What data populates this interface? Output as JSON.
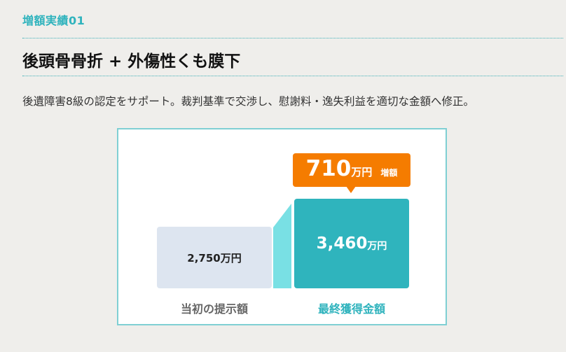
{
  "section_label": "増額実績01",
  "title": "後頭骨骨折 + 外傷性くも膜下",
  "description": "後遺障害8級の認定をサポート。裁判基準で交渉し、慰謝料・逸失利益を適切な金額へ修正。",
  "colors": {
    "accent": "#2fb3bd",
    "increase": "#f57c00",
    "initial_bar": "#dde5f0",
    "final_bar": "#2fb4bd"
  },
  "comparison": {
    "initial": {
      "value": "2,750万円",
      "caption": "当初の提示額"
    },
    "final": {
      "value": "3,460",
      "unit": "万円",
      "caption": "最終獲得金額"
    },
    "increase": {
      "value": "710",
      "unit": "万円",
      "tag": "増額"
    }
  }
}
